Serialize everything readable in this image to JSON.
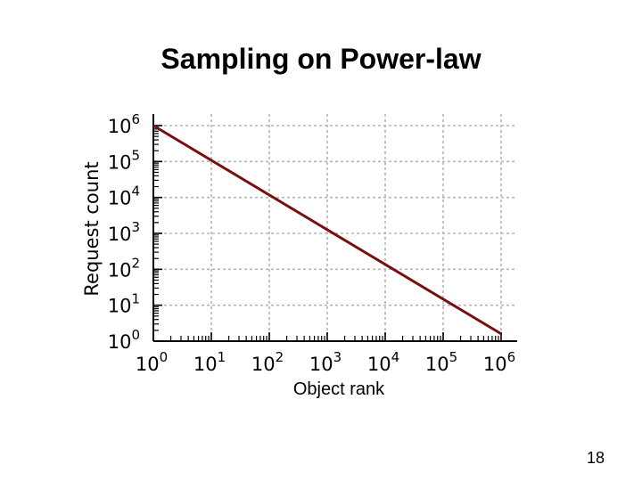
{
  "slide": {
    "title": "Sampling on Power-law",
    "page_number": "18"
  },
  "chart_data": {
    "type": "line",
    "title": "Sampling on Power-law",
    "xlabel": "Object rank",
    "ylabel": "Request count",
    "x_scale": "log",
    "y_scale": "log",
    "xlim": [
      1,
      1000000
    ],
    "ylim": [
      1,
      1000000
    ],
    "grid": true,
    "x_tick_labels": [
      "10^0",
      "10^1",
      "10^2",
      "10^3",
      "10^4",
      "10^5",
      "10^6"
    ],
    "y_tick_labels": [
      "10^0",
      "10^1",
      "10^2",
      "10^3",
      "10^4",
      "10^5",
      "10^6"
    ],
    "series": [
      {
        "color": "#7a0f0f",
        "x": [
          1,
          1000000
        ],
        "y": [
          1000000,
          1.6
        ]
      }
    ]
  }
}
